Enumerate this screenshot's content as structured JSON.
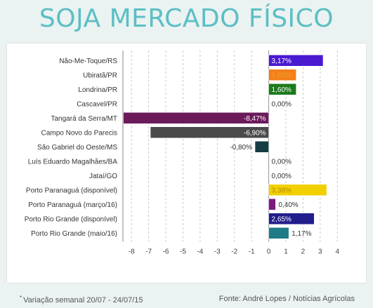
{
  "title": "SOJA MERCADO FÍSICO",
  "footnote_mark": "*",
  "footnote": "Variação semanal 20/07 - 24/07/15",
  "source": "Fonte: André Lopes / Notícias Agrícolas",
  "chart_data": {
    "type": "bar",
    "orientation": "horizontal",
    "categories": [
      "Não-Me-Toque/RS",
      "Ubiratã/PR",
      "Londrina/PR",
      "Cascavel/PR",
      "Tangará da Serra/MT",
      "Campo Novo do Parecis",
      "São Gabriel do Oeste/MS",
      "Luís Eduardo Magalhães/BA",
      "Jataí/GO",
      "Porto Paranaguá (disponível)",
      "Porto Paranaguá (março/16)",
      "Porto Rio Grande (disponível)",
      "Porto Rio Grande (maio/16)"
    ],
    "values": [
      3.17,
      1.6,
      1.6,
      0.0,
      -8.47,
      -6.9,
      -0.8,
      0.0,
      0.0,
      3.38,
      0.4,
      2.65,
      1.17
    ],
    "labels": [
      "3,17%",
      "1,60%",
      "1,60%",
      "0,00%",
      "-8,47%",
      "-6,90%",
      "-0,80%",
      "0,00%",
      "0,00%",
      "3,38%",
      "0,40%",
      "2,65%",
      "1,17%"
    ],
    "colors": [
      "#4a1ad0",
      "#f47f1c",
      "#1d7a1d",
      "#999999",
      "#6b1a5a",
      "#4a4a4a",
      "#163c42",
      "#999999",
      "#999999",
      "#f2d000",
      "#7b1a7e",
      "#221d8c",
      "#1f7b86"
    ],
    "xticks": [
      -8,
      -7,
      -6,
      -5,
      -4,
      -3,
      -2,
      -1,
      0,
      1,
      2,
      3,
      4
    ],
    "xlim": [
      -8.5,
      4.4
    ],
    "grid": "vertical-dashed",
    "xlabel": "",
    "ylabel": ""
  }
}
